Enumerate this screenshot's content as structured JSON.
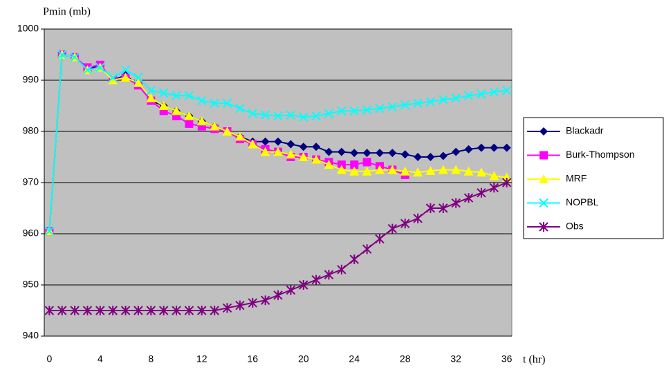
{
  "chart_data": {
    "type": "line",
    "ylabel": "Pmin (mb)",
    "xlabel": "t (hr)",
    "x": [
      0,
      1,
      2,
      3,
      4,
      5,
      6,
      7,
      8,
      9,
      10,
      11,
      12,
      13,
      14,
      15,
      16,
      17,
      18,
      19,
      20,
      21,
      22,
      23,
      24,
      25,
      26,
      27,
      28,
      29,
      30,
      31,
      32,
      33,
      34,
      35,
      36
    ],
    "xlim": [
      -0.4,
      36.4
    ],
    "xticks": [
      0,
      4,
      8,
      12,
      16,
      20,
      24,
      28,
      32,
      36
    ],
    "ylim": [
      940,
      1000
    ],
    "yticks": [
      940,
      950,
      960,
      970,
      980,
      990,
      1000
    ],
    "grid": true,
    "legend": "right",
    "series": [
      {
        "name": "Blackadr",
        "color": "#000080",
        "marker": "diamond",
        "values": [
          960.5,
          995,
          994.5,
          992,
          993,
          990,
          991,
          989,
          986,
          985,
          984,
          983,
          982,
          981,
          980,
          979,
          978,
          978,
          978,
          977.5,
          977,
          977,
          976,
          976,
          975.8,
          975.8,
          975.8,
          975.8,
          975.5,
          975,
          975,
          975.2,
          976,
          976.5,
          976.8,
          976.8,
          976.8
        ]
      },
      {
        "name": "Burk-Thompson",
        "color": "#ff00ff",
        "marker": "square",
        "values": [
          960.5,
          995,
          994.5,
          992.5,
          993,
          990,
          990.5,
          989,
          986,
          984,
          983,
          981.5,
          981,
          980.5,
          980,
          978.5,
          977.5,
          976.5,
          976,
          975,
          975,
          974.5,
          974,
          973.5,
          973.5,
          974,
          973.2,
          972.5,
          971.5,
          null,
          null,
          null,
          null,
          null,
          null,
          null,
          null
        ]
      },
      {
        "name": "MRF",
        "color": "#ffff00",
        "marker": "triangle",
        "values": [
          960.5,
          995,
          994.5,
          992,
          992.5,
          990,
          990.5,
          989.5,
          986.5,
          985,
          984,
          983,
          982,
          981,
          980,
          979,
          977.5,
          976,
          976,
          975.5,
          975,
          974.5,
          973.5,
          972.5,
          972.2,
          972.2,
          972.5,
          972.5,
          972.2,
          972,
          972.3,
          972.5,
          972.5,
          972.2,
          972,
          971.3,
          971
        ]
      },
      {
        "name": "NOPBL",
        "color": "#00ffff",
        "marker": "x",
        "values": [
          960.5,
          995,
          994.5,
          992,
          992.5,
          990.5,
          992,
          990.5,
          988,
          987.5,
          987,
          987,
          986,
          985.5,
          985.5,
          984.5,
          983.5,
          983.2,
          983,
          983.2,
          982.8,
          983,
          983.5,
          984,
          984,
          984.2,
          984.5,
          984.8,
          985.2,
          985.5,
          985.8,
          986.2,
          986.5,
          987,
          987.3,
          987.7,
          988
        ]
      },
      {
        "name": "Obs",
        "color": "#800080",
        "marker": "star",
        "values": [
          945,
          945,
          945,
          945,
          945,
          945,
          945,
          945,
          945,
          945,
          945,
          945,
          945,
          945,
          945.5,
          946,
          946.5,
          947,
          948,
          949,
          950,
          951,
          952,
          953,
          955,
          957,
          959,
          961,
          962,
          963,
          965,
          965,
          966,
          967,
          968,
          969,
          970
        ]
      }
    ]
  }
}
